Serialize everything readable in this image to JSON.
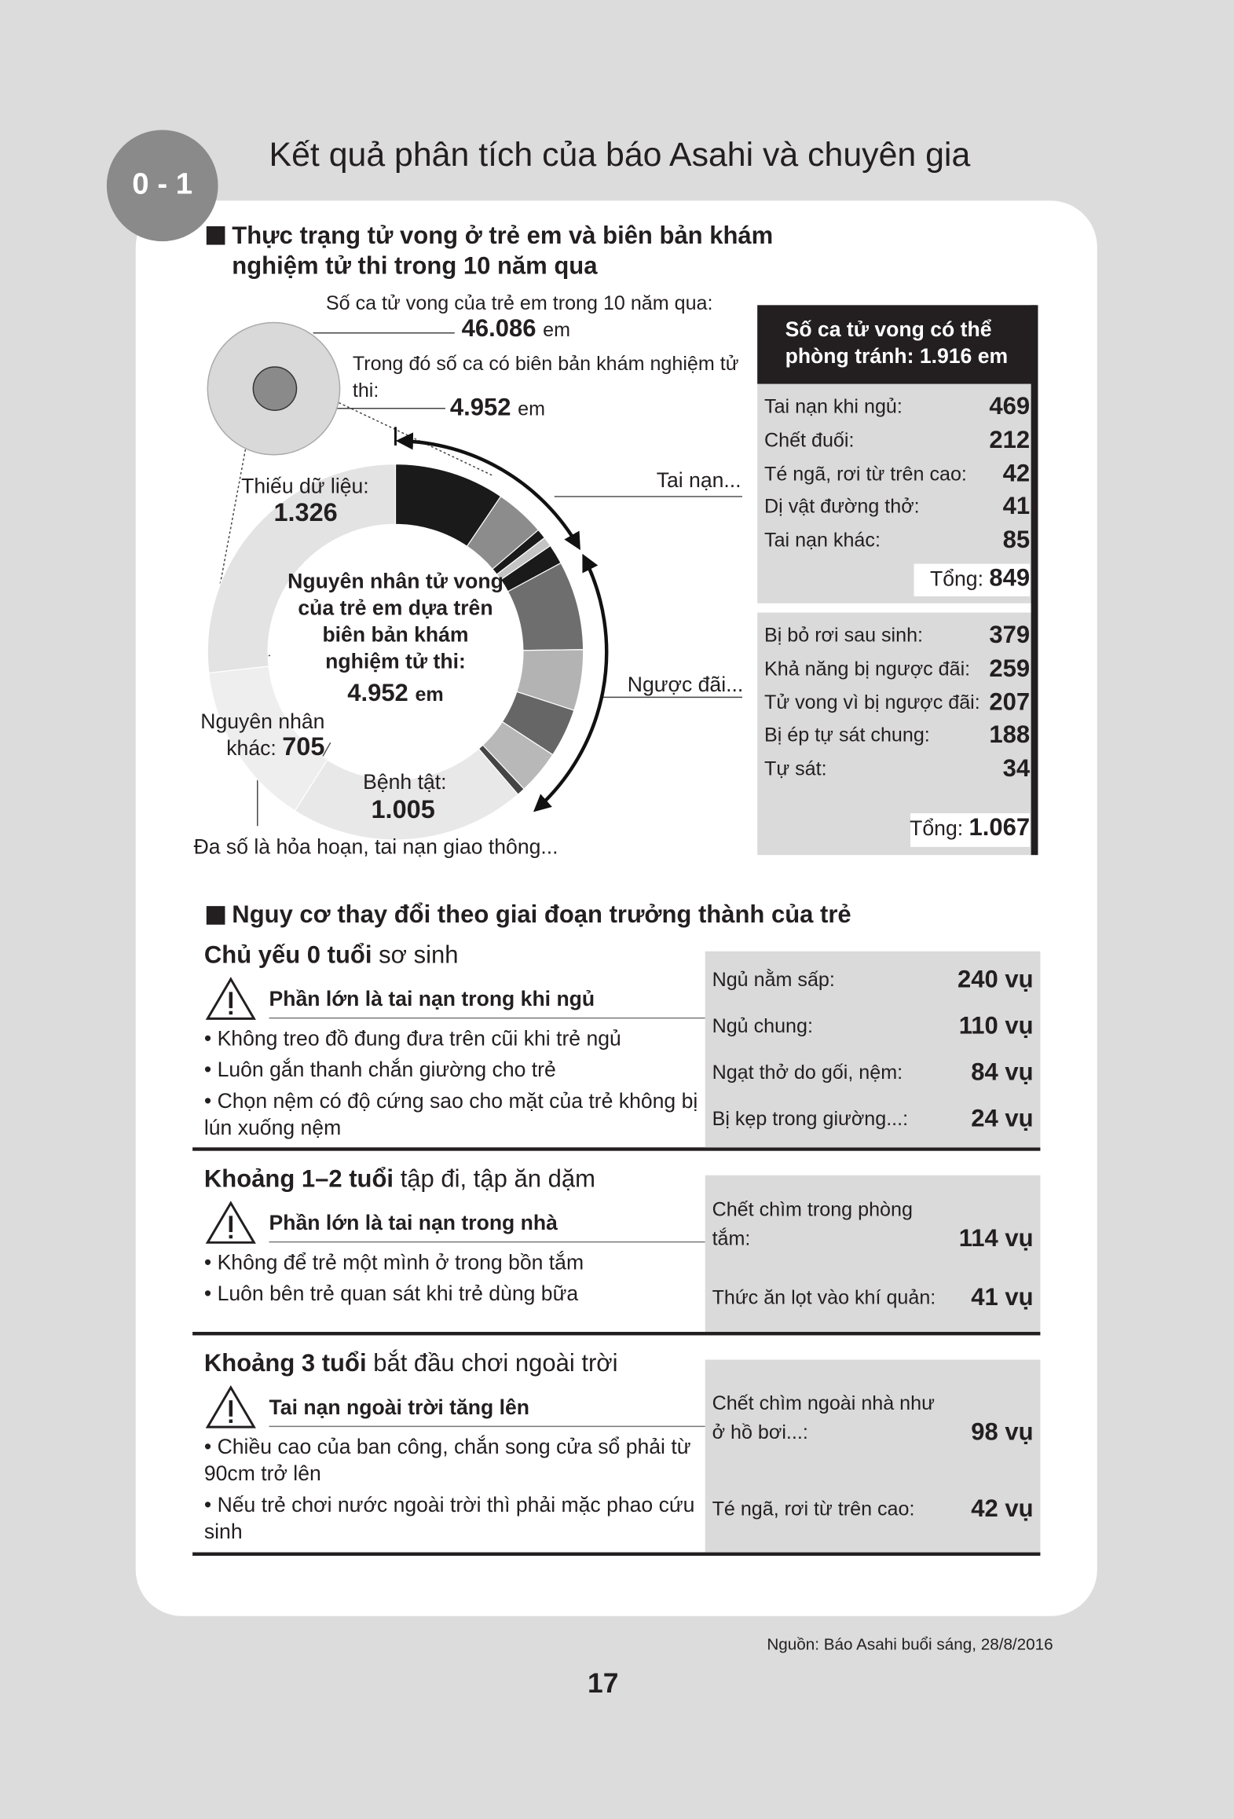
{
  "header": {
    "badge": "0 - 1",
    "title": "Kết quả phân tích của báo Asahi và chuyên gia"
  },
  "section1": {
    "heading": "Thực trạng tử vong ở trẻ em và biên bản khám nghiệm tử thi trong 10 năm qua",
    "deaths_label": "Số ca tử vong của trẻ em trong 10 năm qua:",
    "deaths": {
      "value": 46086,
      "label": "46.086"
    },
    "unit": "em",
    "autopsy_label": "Trong đó số ca có biên bản khám nghiệm tử thi:",
    "autopsy": {
      "value": 4952,
      "label": "4.952"
    },
    "donut_title": "Nguyên nhân tử vong của trẻ em dựa trên biên bản khám nghiệm tử thi:",
    "accident_pointer": "Tai nạn...",
    "abuse_pointer": "Ngược đãi...",
    "preventable_title": "Số ca tử vong có thể phòng tránh: 1.916 em",
    "accidents": {
      "items": [
        {
          "label": "Tai nạn khi ngủ:",
          "value": 469,
          "color": "#1a1a1a"
        },
        {
          "label": "Chết đuối:",
          "value": 212,
          "color": "#8c8c8c"
        },
        {
          "label": "Té ngã, rơi từ trên cao:",
          "value": 42,
          "color": "#1a1a1a"
        },
        {
          "label": "Dị vật đường thở:",
          "value": 41,
          "color": "#c4c4c4"
        },
        {
          "label": "Tai nạn khác:",
          "value": 85,
          "color": "#1a1a1a"
        }
      ],
      "total_label": "Tổng:",
      "total": 849
    },
    "abuse": {
      "items": [
        {
          "label": "Bị bỏ rơi sau sinh:",
          "value": 379,
          "color": "#6e6e6e"
        },
        {
          "label": "Khả năng bị ngược đãi:",
          "value": 259,
          "color": "#b3b3b3"
        },
        {
          "label": "Tử vong vì bị ngược đãi:",
          "value": 207,
          "color": "#666666"
        },
        {
          "label": "Bị ép tự sát chung:",
          "value": 188,
          "color": "#b8b8b8"
        },
        {
          "label": "Tự sát:",
          "value": 34,
          "color": "#444444"
        }
      ],
      "total_label": "Tổng:",
      "total": {
        "value": 1067,
        "label": "1.067"
      }
    },
    "disease": {
      "name": "Bệnh tật:",
      "value": 1005,
      "value_label": "1.005",
      "color": "#e8e8e8"
    },
    "other": {
      "name": "Nguyên nhân khác:",
      "value": 705,
      "color": "#eeeeee",
      "note": "Đa số là hỏa hoạn, tai nạn giao thông..."
    },
    "missing": {
      "name": "Thiếu dữ liệu:",
      "value": 1326,
      "value_label": "1.326",
      "color": "#e3e3e3"
    }
  },
  "section2": {
    "heading": "Nguy cơ thay đổi theo giai đoạn trưởng thành của trẻ",
    "groups": [
      {
        "age": "Chủ yếu 0 tuổi",
        "stage": "sơ sinh",
        "warning": "Phần lớn là tai nạn trong khi ngủ",
        "tips": [
          "Không treo đồ đung đưa trên cũi khi trẻ ngủ",
          "Luôn gắn thanh chắn giường cho trẻ",
          "Chọn nệm có độ cứng sao cho mặt của trẻ không bị lún xuống nệm"
        ],
        "stats": [
          {
            "label": "Ngủ nằm sấp:",
            "value": "240 vụ"
          },
          {
            "label": "Ngủ chung:",
            "value": "110 vụ"
          },
          {
            "label": "Ngạt thở do gối, nệm:",
            "value": "84 vụ"
          },
          {
            "label": "Bị kẹp trong giường...:",
            "value": "24 vụ"
          }
        ]
      },
      {
        "age": "Khoảng 1–2 tuổi",
        "stage": "tập đi, tập ăn dặm",
        "warning": "Phần lớn là tai nạn trong nhà",
        "tips": [
          "Không để trẻ một mình ở trong bồn tắm",
          "Luôn bên trẻ quan sát khi trẻ dùng bữa"
        ],
        "stats": [
          {
            "label": "Chết chìm trong phòng tắm:",
            "value": "114 vụ"
          },
          {
            "label": "Thức ăn lọt vào khí quản:",
            "value": "41 vụ"
          }
        ]
      },
      {
        "age": "Khoảng 3 tuổi",
        "stage": "bắt đầu chơi ngoài trời",
        "warning": "Tai nạn ngoài trời tăng lên",
        "tips": [
          "Chiều cao của ban công, chắn song cửa sổ phải từ 90cm trở lên",
          "Nếu trẻ chơi nước ngoài trời thì phải mặc phao cứu sinh"
        ],
        "stats": [
          {
            "label": "Chết chìm ngoài nhà như ở hồ bơi...:",
            "value": "98 vụ"
          },
          {
            "label": "Té ngã, rơi từ trên cao:",
            "value": "42 vụ"
          }
        ]
      }
    ]
  },
  "footer": {
    "source": "Nguồn: Báo Asahi buổi sáng, 28/8/2016",
    "page": 17
  }
}
